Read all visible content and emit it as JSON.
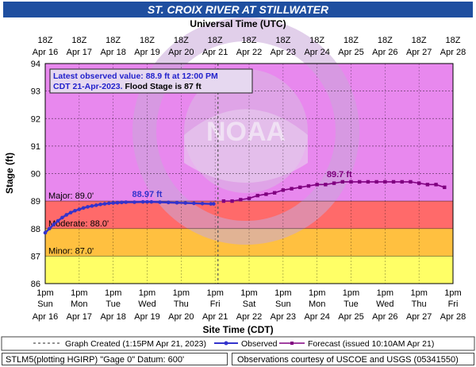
{
  "title": "ST. CROIX RIVER AT STILLWATER",
  "top_axis_title": "Universal Time (UTC)",
  "bottom_axis_title": "Site Time (CDT)",
  "colors": {
    "title_bg": "#1f4fa0",
    "minor_band": "#ffff66",
    "moderate_band": "#ffc040",
    "major_band": "#ff6a6a",
    "above_major": "#e888ee",
    "observed": "#3333cc",
    "forecast": "#800080"
  },
  "chart_data": {
    "type": "line",
    "ylabel": "Stage (ft)",
    "xlabel": "Site Time (CDT)",
    "ylim": [
      86,
      94
    ],
    "y_ticks": [
      "86",
      "87",
      "88",
      "89",
      "90",
      "91",
      "92",
      "93",
      "94"
    ],
    "x_range": [
      "Apr 16 1pm",
      "Apr 28 1pm"
    ],
    "top_ticks": [
      {
        "time": "18Z",
        "date": "Apr 16"
      },
      {
        "time": "18Z",
        "date": "Apr 17"
      },
      {
        "time": "18Z",
        "date": "Apr 18"
      },
      {
        "time": "18Z",
        "date": "Apr 19"
      },
      {
        "time": "18Z",
        "date": "Apr 20"
      },
      {
        "time": "18Z",
        "date": "Apr 21"
      },
      {
        "time": "18Z",
        "date": "Apr 22"
      },
      {
        "time": "18Z",
        "date": "Apr 23"
      },
      {
        "time": "18Z",
        "date": "Apr 24"
      },
      {
        "time": "18Z",
        "date": "Apr 25"
      },
      {
        "time": "18Z",
        "date": "Apr 26"
      },
      {
        "time": "18Z",
        "date": "Apr 27"
      },
      {
        "time": "18Z",
        "date": "Apr 28"
      }
    ],
    "bottom_ticks": [
      {
        "time": "1pm",
        "day": "Sun",
        "date": "Apr 16"
      },
      {
        "time": "1pm",
        "day": "Mon",
        "date": "Apr 17"
      },
      {
        "time": "1pm",
        "day": "Tue",
        "date": "Apr 18"
      },
      {
        "time": "1pm",
        "day": "Wed",
        "date": "Apr 19"
      },
      {
        "time": "1pm",
        "day": "Thu",
        "date": "Apr 20"
      },
      {
        "time": "1pm",
        "day": "Fri",
        "date": "Apr 21"
      },
      {
        "time": "1pm",
        "day": "Sat",
        "date": "Apr 22"
      },
      {
        "time": "1pm",
        "day": "Sun",
        "date": "Apr 23"
      },
      {
        "time": "1pm",
        "day": "Mon",
        "date": "Apr 24"
      },
      {
        "time": "1pm",
        "day": "Tue",
        "date": "Apr 25"
      },
      {
        "time": "1pm",
        "day": "Wed",
        "date": "Apr 26"
      },
      {
        "time": "1pm",
        "day": "Thu",
        "date": "Apr 27"
      },
      {
        "time": "1pm",
        "day": "Fri",
        "date": "Apr 28"
      }
    ],
    "flood_categories": [
      {
        "label": "Major: 89.0'",
        "value": 89.0
      },
      {
        "label": "Moderate: 88.0'",
        "value": 88.0
      },
      {
        "label": "Minor: 87.0'",
        "value": 87.0
      }
    ],
    "graph_created": "Apr 21 1:15pm",
    "series": [
      {
        "name": "Observed",
        "x": [
          "Apr 16 1pm",
          "Apr 16 4pm",
          "Apr 16 7pm",
          "Apr 16 10pm",
          "Apr 17 1am",
          "Apr 17 4am",
          "Apr 17 7am",
          "Apr 17 10am",
          "Apr 17 1pm",
          "Apr 17 4pm",
          "Apr 17 7pm",
          "Apr 17 10pm",
          "Apr 18 1am",
          "Apr 18 4am",
          "Apr 18 7am",
          "Apr 18 10am",
          "Apr 18 1pm",
          "Apr 18 4pm",
          "Apr 18 7pm",
          "Apr 18 10pm",
          "Apr 19 4am",
          "Apr 19 10am",
          "Apr 19 1pm",
          "Apr 19 4pm",
          "Apr 19 10pm",
          "Apr 20 4am",
          "Apr 20 10am",
          "Apr 20 4pm",
          "Apr 20 10pm",
          "Apr 21 4am",
          "Apr 21 10am",
          "Apr 21 12pm"
        ],
        "y": [
          87.85,
          88.0,
          88.15,
          88.28,
          88.4,
          88.5,
          88.58,
          88.65,
          88.7,
          88.75,
          88.79,
          88.82,
          88.85,
          88.88,
          88.9,
          88.92,
          88.93,
          88.94,
          88.95,
          88.96,
          88.96,
          88.97,
          88.97,
          88.97,
          88.96,
          88.95,
          88.94,
          88.93,
          88.92,
          88.91,
          88.9,
          88.9
        ]
      },
      {
        "name": "Forecast (issued 10:10AM Apr 21)",
        "x": [
          "Apr 21 7pm",
          "Apr 22 1am",
          "Apr 22 7am",
          "Apr 22 1pm",
          "Apr 22 7pm",
          "Apr 23 1am",
          "Apr 23 7am",
          "Apr 23 1pm",
          "Apr 23 7pm",
          "Apr 24 1am",
          "Apr 24 7am",
          "Apr 24 1pm",
          "Apr 24 7pm",
          "Apr 25 1am",
          "Apr 25 7am",
          "Apr 25 1pm",
          "Apr 25 7pm",
          "Apr 26 1am",
          "Apr 26 7am",
          "Apr 26 1pm",
          "Apr 26 7pm",
          "Apr 27 1am",
          "Apr 27 7am",
          "Apr 27 1pm",
          "Apr 27 7pm",
          "Apr 28 1am",
          "Apr 28 7am"
        ],
        "y": [
          89.0,
          89.0,
          89.05,
          89.1,
          89.2,
          89.25,
          89.3,
          89.4,
          89.45,
          89.5,
          89.55,
          89.6,
          89.6,
          89.65,
          89.7,
          89.7,
          89.7,
          89.7,
          89.7,
          89.7,
          89.7,
          89.7,
          89.7,
          89.65,
          89.6,
          89.6,
          89.5
        ]
      }
    ],
    "annotations": [
      {
        "text": "88.97 ft",
        "series": "Observed",
        "at": "Apr 19 1pm"
      },
      {
        "text": "89.7 ft",
        "series": "Forecast",
        "at": "Apr 25 7am"
      }
    ]
  },
  "info_box": {
    "line1": "Latest observed value: 88.9 ft at 12:00 PM",
    "line2_blue": "CDT 21-Apr-2023.",
    "line2_black": "Flood Stage is 87 ft"
  },
  "legend": {
    "graph_created": "Graph Created (1:15PM Apr 21, 2023)",
    "observed": "Observed",
    "forecast": "Forecast (issued 10:10AM Apr 21)"
  },
  "footer": {
    "left": "STLM5(plotting HGIRP) \"Gage 0\" Datum: 600'",
    "right": "Observations courtesy of USCOE and USGS (05341550)"
  },
  "watermark_text": "NOAA"
}
